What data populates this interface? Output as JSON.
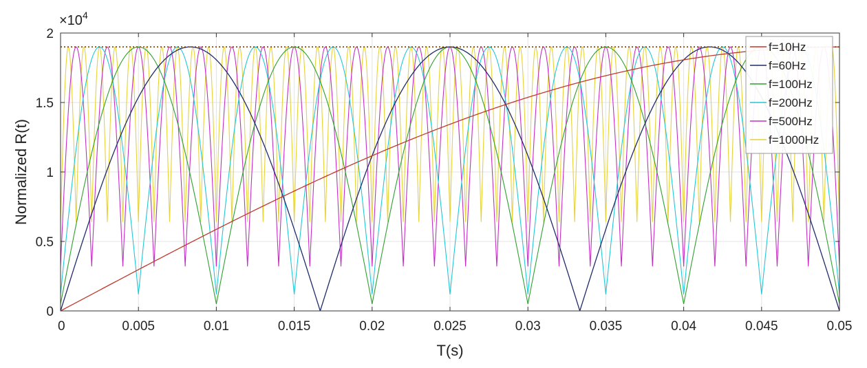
{
  "chart_data": {
    "type": "line",
    "xlabel": "T(s)",
    "ylabel": "Normalized R(t)",
    "y_multiplier": "×10",
    "y_exponent": "4",
    "xlim": [
      0,
      0.05
    ],
    "ylim": [
      0,
      2
    ],
    "xticks": [
      0,
      0.005,
      0.01,
      0.015,
      0.02,
      0.025,
      0.03,
      0.035,
      0.04,
      0.045,
      0.05
    ],
    "xtick_labels": [
      "0",
      "0.005",
      "0.01",
      "0.015",
      "0.02",
      "0.025",
      "0.03",
      "0.035",
      "0.04",
      "0.045",
      "0.05"
    ],
    "yticks": [
      0,
      0.5,
      1,
      1.5,
      2
    ],
    "ytick_labels": [
      "0",
      "0.5",
      "1",
      "1.5",
      "2"
    ],
    "grid": true,
    "legend_position": "top-right",
    "series": [
      {
        "name": "f=10Hz",
        "color": "#c0392b",
        "frequency_hz": 10,
        "peak": 1.9,
        "floor": 0.0
      },
      {
        "name": "f=60Hz",
        "color": "#1f2a6b",
        "frequency_hz": 60,
        "peak": 1.9,
        "floor": 0.0
      },
      {
        "name": "f=100Hz",
        "color": "#2ca02c",
        "frequency_hz": 100,
        "peak": 1.9,
        "floor": 0.05
      },
      {
        "name": "f=200Hz",
        "color": "#22c7d6",
        "frequency_hz": 200,
        "peak": 1.9,
        "floor": 0.12
      },
      {
        "name": "f=500Hz",
        "color": "#c22fc2",
        "frequency_hz": 500,
        "peak": 1.9,
        "floor": 0.32
      },
      {
        "name": "f=1000Hz",
        "color": "#e6d23a",
        "frequency_hz": 1000,
        "peak": 1.9,
        "floor": 0.64
      }
    ]
  }
}
